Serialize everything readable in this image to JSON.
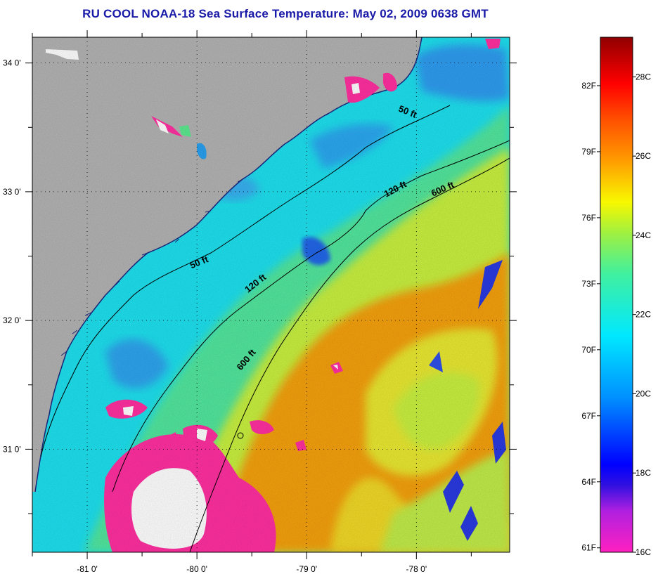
{
  "title": "RU COOL  NOAA-18  Sea Surface Temperature:  May 02, 2009 0638 GMT",
  "map": {
    "lon_range": [
      -81.5,
      -77.15
    ],
    "lat_range": [
      30.2,
      34.2
    ],
    "lon_ticks": [
      {
        "value": -81,
        "label": "-81 0'"
      },
      {
        "value": -80,
        "label": "-80 0'"
      },
      {
        "value": -79,
        "label": "-79 0'"
      },
      {
        "value": -78,
        "label": "-78 0'"
      }
    ],
    "lat_ticks": [
      {
        "value": 31,
        "label": "31 0'"
      },
      {
        "value": 32,
        "label": "32 0'"
      },
      {
        "value": 33,
        "label": "33 0'"
      },
      {
        "value": 34,
        "label": "34 0'"
      }
    ],
    "contour_labels": [
      {
        "text": "50 ft",
        "lon": -79.97,
        "lat": 32.43,
        "rotate": -22
      },
      {
        "text": "50 ft",
        "lon": -78.09,
        "lat": 33.6,
        "rotate": 22
      },
      {
        "text": "120 ft",
        "lon": -79.45,
        "lat": 32.27,
        "rotate": -38
      },
      {
        "text": "120 ft",
        "lon": -78.18,
        "lat": 33.0,
        "rotate": -28
      },
      {
        "text": "600 ft",
        "lon": -79.53,
        "lat": 31.68,
        "rotate": -50
      },
      {
        "text": "600 ft",
        "lon": -77.75,
        "lat": 33.0,
        "rotate": -24
      }
    ],
    "colors": {
      "land": "#b3b3b3",
      "cloud": "#ff30a0",
      "no_data": "#ffffff"
    }
  },
  "colorbar": {
    "fahrenheit_labels": [
      "82F",
      "79F",
      "76F",
      "73F",
      "70F",
      "67F",
      "64F",
      "61F"
    ],
    "celsius_labels": [
      "28C",
      "26C",
      "24C",
      "22C",
      "20C",
      "18C",
      "16C"
    ],
    "celsius_min": 16,
    "celsius_max": 29
  }
}
